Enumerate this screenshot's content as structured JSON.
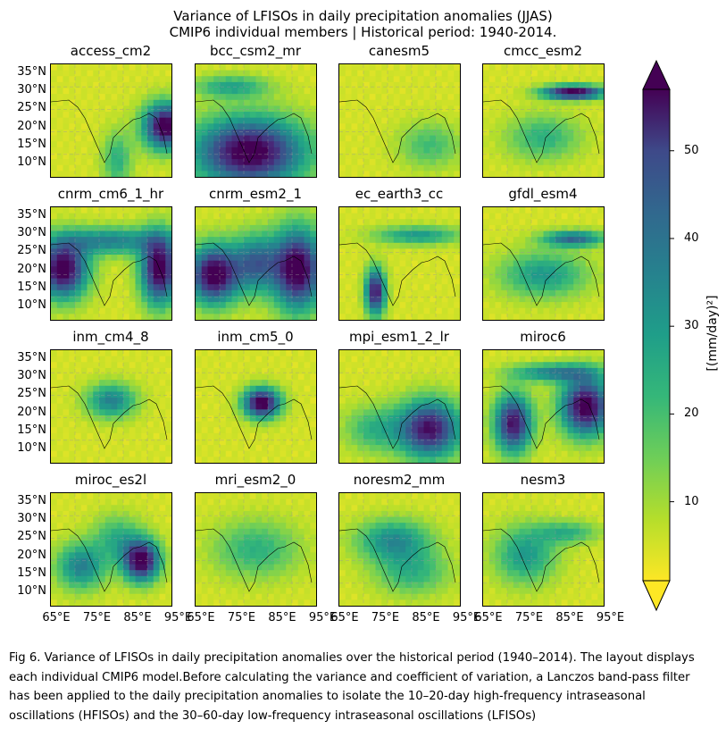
{
  "chart_data": {
    "type": "heatmap",
    "title": "Variance of LFISOs in daily precipitation anomalies (JJAS)",
    "subtitle": "CMIP6 individual members | Historical period: 1940-2014.",
    "colorbar": {
      "label": "[(mm/day)²]",
      "ticks": [
        "10",
        "20",
        "30",
        "40",
        "50"
      ],
      "colormap": "viridis_r",
      "range": [
        1,
        57
      ],
      "extend": "both"
    },
    "x_ticks": [
      "65°E",
      "75°E",
      "85°E",
      "95°E"
    ],
    "y_ticks": [
      "35°N",
      "30°N",
      "25°N",
      "20°N",
      "15°N",
      "10°N"
    ],
    "panels": [
      {
        "model": "access_cm2"
      },
      {
        "model": "bcc_csm2_mr"
      },
      {
        "model": "canesm5"
      },
      {
        "model": "cmcc_esm2"
      },
      {
        "model": "cnrm_cm6_1_hr"
      },
      {
        "model": "cnrm_esm2_1"
      },
      {
        "model": "ec_earth3_cc"
      },
      {
        "model": "gfdl_esm4"
      },
      {
        "model": "inm_cm4_8"
      },
      {
        "model": "inm_cm5_0"
      },
      {
        "model": "mpi_esm1_2_lr"
      },
      {
        "model": "miroc6"
      },
      {
        "model": "miroc_es2l"
      },
      {
        "model": "mri_esm2_0"
      },
      {
        "model": "noresm2_mm"
      },
      {
        "model": "nesm3"
      }
    ]
  },
  "caption": "Fig 6. Variance of LFISOs in daily precipitation anomalies over the historical period (1940–2014). The layout displays each individual CMIP6 model.Before calculating the variance and coefficient of variation, a Lanczos band-pass filter has been applied to the daily precipitation anomalies to isolate the 10–20-day high-frequency intraseasonal oscillations (HFISOs) and the 30–60-day low-frequency intraseasonal oscillations (LFISOs)"
}
